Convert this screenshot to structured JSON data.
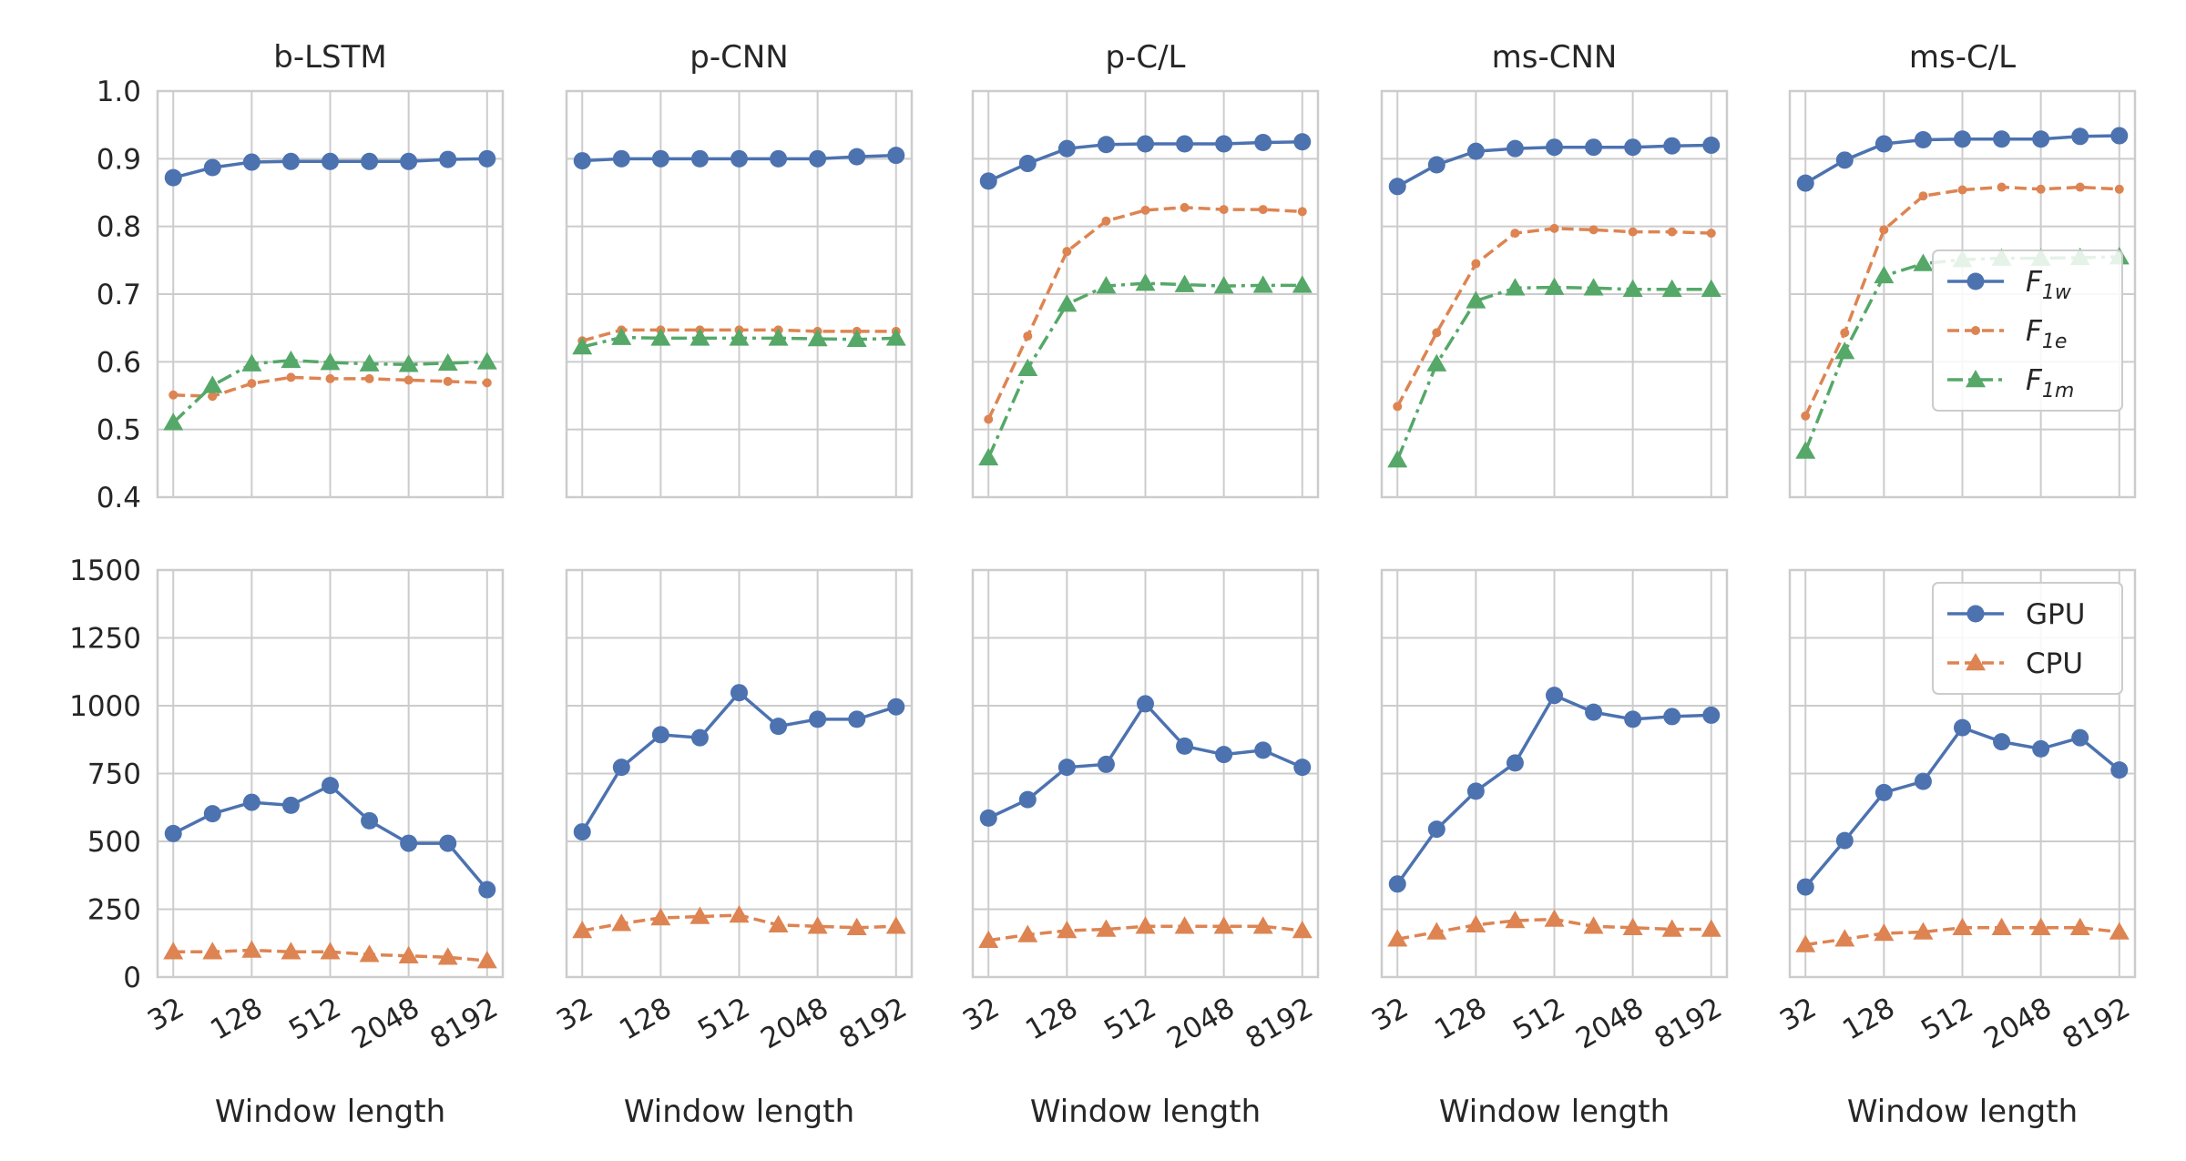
{
  "chart_data": [
    {
      "type": "line",
      "title": "b-LSTM",
      "xscale": "log2",
      "x": [
        32,
        64,
        128,
        256,
        512,
        1024,
        2048,
        4096,
        8192
      ],
      "xlim": [
        24.25,
        10809
      ],
      "xticks": [
        32,
        128,
        512,
        2048,
        8192
      ],
      "ylim": [
        0.4,
        1.0
      ],
      "yticks": [
        0.4,
        0.5,
        0.6,
        0.7,
        0.8,
        0.9,
        {
          "value": 1,
          "label": "1.0"
        }
      ],
      "grid": true,
      "series": [
        {
          "color": "#4c72b0",
          "marker": "circle",
          "linestyle": "solid",
          "values": [
            0.872,
            0.887,
            0.895,
            0.896,
            0.896,
            0.896,
            0.896,
            0.899,
            0.9
          ]
        },
        {
          "color": "#dd8452",
          "marker": "dot",
          "linestyle": "dashed",
          "values": [
            0.551,
            0.549,
            0.568,
            0.577,
            0.575,
            0.575,
            0.573,
            0.571,
            0.569
          ]
        },
        {
          "color": "#55a868",
          "marker": "triangle",
          "linestyle": "dashdot",
          "values": [
            0.51,
            0.565,
            0.597,
            0.602,
            0.599,
            0.597,
            0.596,
            0.598,
            0.6
          ]
        }
      ]
    },
    {
      "type": "line",
      "title": "p-CNN",
      "xscale": "log2",
      "x": [
        32,
        64,
        128,
        256,
        512,
        1024,
        2048,
        4096,
        8192
      ],
      "xlim": [
        24.25,
        10809
      ],
      "xticks": [
        32,
        128,
        512,
        2048,
        8192
      ],
      "ylim": [
        0.4,
        1.0
      ],
      "yticks": [
        0.4,
        0.5,
        0.6,
        0.7,
        0.8,
        0.9,
        {
          "value": 1,
          "label": "1.0"
        }
      ],
      "grid": true,
      "series": [
        {
          "color": "#4c72b0",
          "marker": "circle",
          "linestyle": "solid",
          "values": [
            0.897,
            0.9,
            0.9,
            0.9,
            0.9,
            0.9,
            0.9,
            0.903,
            0.905
          ]
        },
        {
          "color": "#dd8452",
          "marker": "dot",
          "linestyle": "dashed",
          "values": [
            0.631,
            0.647,
            0.647,
            0.647,
            0.647,
            0.647,
            0.645,
            0.645,
            0.645
          ]
        },
        {
          "color": "#55a868",
          "marker": "triangle",
          "linestyle": "dashdot",
          "values": [
            0.622,
            0.636,
            0.635,
            0.635,
            0.635,
            0.635,
            0.634,
            0.633,
            0.635
          ]
        }
      ]
    },
    {
      "type": "line",
      "title": "p-C/L",
      "xscale": "log2",
      "x": [
        32,
        64,
        128,
        256,
        512,
        1024,
        2048,
        4096,
        8192
      ],
      "xlim": [
        24.25,
        10809
      ],
      "xticks": [
        32,
        128,
        512,
        2048,
        8192
      ],
      "ylim": [
        0.4,
        1.0
      ],
      "yticks": [
        0.4,
        0.5,
        0.6,
        0.7,
        0.8,
        0.9,
        {
          "value": 1,
          "label": "1.0"
        }
      ],
      "grid": true,
      "series": [
        {
          "color": "#4c72b0",
          "marker": "circle",
          "linestyle": "solid",
          "values": [
            0.867,
            0.893,
            0.915,
            0.921,
            0.922,
            0.922,
            0.922,
            0.924,
            0.925
          ]
        },
        {
          "color": "#dd8452",
          "marker": "dot",
          "linestyle": "dashed",
          "values": [
            0.515,
            0.638,
            0.763,
            0.808,
            0.824,
            0.828,
            0.825,
            0.825,
            0.822
          ]
        },
        {
          "color": "#55a868",
          "marker": "triangle",
          "linestyle": "dashdot",
          "values": [
            0.458,
            0.59,
            0.685,
            0.712,
            0.716,
            0.714,
            0.712,
            0.713,
            0.713
          ]
        }
      ]
    },
    {
      "type": "line",
      "title": "ms-CNN",
      "xscale": "log2",
      "x": [
        32,
        64,
        128,
        256,
        512,
        1024,
        2048,
        4096,
        8192
      ],
      "xlim": [
        24.25,
        10809
      ],
      "xticks": [
        32,
        128,
        512,
        2048,
        8192
      ],
      "ylim": [
        0.4,
        1.0
      ],
      "yticks": [
        0.4,
        0.5,
        0.6,
        0.7,
        0.8,
        0.9,
        {
          "value": 1,
          "label": "1.0"
        }
      ],
      "grid": true,
      "series": [
        {
          "color": "#4c72b0",
          "marker": "circle",
          "linestyle": "solid",
          "values": [
            0.859,
            0.891,
            0.911,
            0.915,
            0.917,
            0.917,
            0.917,
            0.919,
            0.92
          ]
        },
        {
          "color": "#dd8452",
          "marker": "dot",
          "linestyle": "dashed",
          "values": [
            0.534,
            0.643,
            0.745,
            0.79,
            0.797,
            0.795,
            0.792,
            0.792,
            0.79
          ]
        },
        {
          "color": "#55a868",
          "marker": "triangle",
          "linestyle": "dashdot",
          "values": [
            0.455,
            0.597,
            0.69,
            0.709,
            0.71,
            0.709,
            0.707,
            0.707,
            0.707
          ]
        }
      ]
    },
    {
      "type": "line",
      "title": "ms-C/L",
      "xscale": "log2",
      "x": [
        32,
        64,
        128,
        256,
        512,
        1024,
        2048,
        4096,
        8192
      ],
      "xlim": [
        24.25,
        10809
      ],
      "xticks": [
        32,
        128,
        512,
        2048,
        8192
      ],
      "ylim": [
        0.4,
        1.0
      ],
      "yticks": [
        0.4,
        0.5,
        0.6,
        0.7,
        0.8,
        0.9,
        {
          "value": 1,
          "label": "1.0"
        }
      ],
      "grid": true,
      "legend": "center right",
      "series": [
        {
          "name": "F1w",
          "color": "#4c72b0",
          "marker": "circle",
          "linestyle": "solid",
          "values": [
            0.864,
            0.898,
            0.922,
            0.928,
            0.929,
            0.929,
            0.929,
            0.933,
            0.934
          ]
        },
        {
          "name": "F1e",
          "color": "#dd8452",
          "marker": "dot",
          "linestyle": "dashed",
          "values": [
            0.52,
            0.643,
            0.795,
            0.845,
            0.854,
            0.858,
            0.855,
            0.858,
            0.855
          ]
        },
        {
          "name": "F1m",
          "color": "#55a868",
          "marker": "triangle",
          "linestyle": "dashdot",
          "values": [
            0.468,
            0.615,
            0.727,
            0.745,
            0.751,
            0.753,
            0.753,
            0.754,
            0.755
          ]
        }
      ]
    },
    {
      "type": "line",
      "xlabel": "Window length",
      "xscale": "log2",
      "x": [
        32,
        64,
        128,
        256,
        512,
        1024,
        2048,
        4096,
        8192
      ],
      "xlim": [
        24.25,
        10809
      ],
      "xticks": [
        32,
        128,
        512,
        2048,
        8192
      ],
      "ylim": [
        0,
        1500
      ],
      "yticks": [
        0,
        250,
        500,
        750,
        1000,
        1250,
        1500
      ],
      "grid": true,
      "series": [
        {
          "color": "#4c72b0",
          "marker": "circle",
          "linestyle": "solid",
          "values": [
            529,
            602,
            644,
            633,
            706,
            576,
            493,
            493,
            322
          ]
        },
        {
          "color": "#dd8452",
          "marker": "triangle",
          "linestyle": "dashed",
          "values": [
            93,
            93,
            99,
            93,
            93,
            83,
            78,
            73,
            60
          ]
        }
      ]
    },
    {
      "type": "line",
      "xlabel": "Window length",
      "xscale": "log2",
      "x": [
        32,
        64,
        128,
        256,
        512,
        1024,
        2048,
        4096,
        8192
      ],
      "xlim": [
        24.25,
        10809
      ],
      "xticks": [
        32,
        128,
        512,
        2048,
        8192
      ],
      "ylim": [
        0,
        1500
      ],
      "yticks": [
        0,
        250,
        500,
        750,
        1000,
        1250,
        1500
      ],
      "grid": true,
      "series": [
        {
          "color": "#4c72b0",
          "marker": "circle",
          "linestyle": "solid",
          "values": [
            535,
            773,
            893,
            882,
            1048,
            924,
            950,
            950,
            996
          ]
        },
        {
          "color": "#dd8452",
          "marker": "triangle",
          "linestyle": "dashed",
          "values": [
            171,
            197,
            218,
            223,
            228,
            192,
            187,
            182,
            187
          ]
        }
      ]
    },
    {
      "type": "line",
      "xlabel": "Window length",
      "xscale": "log2",
      "x": [
        32,
        64,
        128,
        256,
        512,
        1024,
        2048,
        4096,
        8192
      ],
      "xlim": [
        24.25,
        10809
      ],
      "xticks": [
        32,
        128,
        512,
        2048,
        8192
      ],
      "ylim": [
        0,
        1500
      ],
      "yticks": [
        0,
        250,
        500,
        750,
        1000,
        1250,
        1500
      ],
      "grid": true,
      "series": [
        {
          "color": "#4c72b0",
          "marker": "circle",
          "linestyle": "solid",
          "values": [
            586,
            654,
            773,
            784,
            1007,
            851,
            820,
            836,
            773
          ]
        },
        {
          "color": "#dd8452",
          "marker": "triangle",
          "linestyle": "dashed",
          "values": [
            135,
            156,
            171,
            176,
            187,
            187,
            187,
            187,
            171
          ]
        }
      ]
    },
    {
      "type": "line",
      "xlabel": "Window length",
      "xscale": "log2",
      "x": [
        32,
        64,
        128,
        256,
        512,
        1024,
        2048,
        4096,
        8192
      ],
      "xlim": [
        24.25,
        10809
      ],
      "xticks": [
        32,
        128,
        512,
        2048,
        8192
      ],
      "ylim": [
        0,
        1500
      ],
      "yticks": [
        0,
        250,
        500,
        750,
        1000,
        1250,
        1500
      ],
      "grid": true,
      "series": [
        {
          "color": "#4c72b0",
          "marker": "circle",
          "linestyle": "solid",
          "values": [
            343,
            545,
            685,
            789,
            1038,
            976,
            950,
            960,
            965
          ]
        },
        {
          "color": "#dd8452",
          "marker": "triangle",
          "linestyle": "dashed",
          "values": [
            140,
            166,
            192,
            208,
            213,
            187,
            182,
            176,
            176
          ]
        }
      ]
    },
    {
      "type": "line",
      "xlabel": "Window length",
      "xscale": "log2",
      "x": [
        32,
        64,
        128,
        256,
        512,
        1024,
        2048,
        4096,
        8192
      ],
      "xlim": [
        24.25,
        10809
      ],
      "xticks": [
        32,
        128,
        512,
        2048,
        8192
      ],
      "ylim": [
        0,
        1500
      ],
      "yticks": [
        0,
        250,
        500,
        750,
        1000,
        1250,
        1500
      ],
      "grid": true,
      "legend": "upper right",
      "series": [
        {
          "name": "GPU",
          "color": "#4c72b0",
          "marker": "circle",
          "linestyle": "solid",
          "values": [
            332,
            503,
            680,
            721,
            919,
            867,
            841,
            882,
            763
          ]
        },
        {
          "name": "CPU",
          "color": "#dd8452",
          "marker": "triangle",
          "linestyle": "dashed",
          "values": [
            119,
            140,
            161,
            166,
            182,
            182,
            182,
            182,
            166
          ]
        }
      ]
    }
  ]
}
